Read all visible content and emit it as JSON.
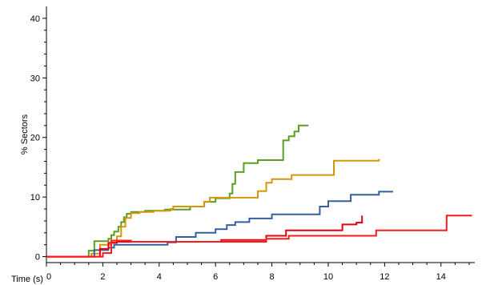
{
  "chart_data": {
    "type": "line",
    "xlabel": "Time (s)",
    "ylabel": "% Sectors",
    "xlim": [
      0,
      15.2
    ],
    "ylim": [
      -1,
      42
    ],
    "xticks": [
      0,
      2,
      4,
      6,
      8,
      10,
      12,
      14
    ],
    "yticks": [
      0,
      10,
      20,
      30,
      40
    ],
    "grid": false,
    "legend": "none",
    "series": [
      {
        "color": "#5aa01e",
        "points": [
          [
            0,
            0
          ],
          [
            1.5,
            0
          ],
          [
            1.5,
            1
          ],
          [
            1.7,
            1
          ],
          [
            1.7,
            2.6
          ],
          [
            2.2,
            2.6
          ],
          [
            2.2,
            3
          ],
          [
            2.3,
            3
          ],
          [
            2.3,
            3.6
          ],
          [
            2.4,
            3.6
          ],
          [
            2.4,
            4.2
          ],
          [
            2.55,
            4.2
          ],
          [
            2.55,
            5
          ],
          [
            2.65,
            5
          ],
          [
            2.65,
            5.8
          ],
          [
            2.75,
            5.8
          ],
          [
            2.75,
            6.6
          ],
          [
            2.85,
            6.6
          ],
          [
            2.85,
            7.2
          ],
          [
            3.0,
            7.2
          ],
          [
            3.0,
            7.5
          ],
          [
            3.5,
            7.5
          ],
          [
            3.5,
            7.7
          ],
          [
            4.2,
            7.7
          ],
          [
            4.2,
            7.9
          ],
          [
            5.1,
            7.9
          ],
          [
            5.1,
            8.4
          ],
          [
            5.6,
            8.4
          ],
          [
            5.6,
            9.2
          ],
          [
            6.0,
            9.2
          ],
          [
            6.0,
            9.8
          ],
          [
            6.5,
            9.8
          ],
          [
            6.5,
            10.6
          ],
          [
            6.6,
            10.6
          ],
          [
            6.6,
            12.2
          ],
          [
            6.7,
            12.2
          ],
          [
            6.7,
            14.2
          ],
          [
            7.0,
            14.2
          ],
          [
            7.0,
            15.7
          ],
          [
            7.5,
            15.7
          ],
          [
            7.5,
            16.2
          ],
          [
            8.4,
            16.2
          ],
          [
            8.4,
            19.5
          ],
          [
            8.6,
            19.5
          ],
          [
            8.6,
            20.2
          ],
          [
            8.8,
            20.2
          ],
          [
            8.8,
            21
          ],
          [
            8.95,
            21
          ],
          [
            8.95,
            22
          ],
          [
            9.3,
            22
          ]
        ]
      },
      {
        "color": "#d4960c",
        "points": [
          [
            0,
            0
          ],
          [
            1.6,
            0
          ],
          [
            1.6,
            0.5
          ],
          [
            1.9,
            0.5
          ],
          [
            1.9,
            2
          ],
          [
            2.3,
            2
          ],
          [
            2.3,
            2.4
          ],
          [
            2.5,
            2.4
          ],
          [
            2.5,
            3.4
          ],
          [
            2.65,
            3.4
          ],
          [
            2.65,
            5
          ],
          [
            2.8,
            5
          ],
          [
            2.8,
            6.5
          ],
          [
            3.0,
            6.5
          ],
          [
            3.0,
            7.3
          ],
          [
            3.3,
            7.3
          ],
          [
            3.3,
            7.5
          ],
          [
            3.8,
            7.5
          ],
          [
            3.8,
            7.7
          ],
          [
            4.4,
            7.7
          ],
          [
            4.4,
            8.0
          ],
          [
            4.5,
            8.0
          ],
          [
            4.5,
            8.4
          ],
          [
            5.6,
            8.4
          ],
          [
            5.6,
            9.2
          ],
          [
            5.8,
            9.2
          ],
          [
            5.8,
            9.9
          ],
          [
            7.5,
            9.9
          ],
          [
            7.5,
            11
          ],
          [
            7.8,
            11
          ],
          [
            7.8,
            12.4
          ],
          [
            8.0,
            12.4
          ],
          [
            8.0,
            13
          ],
          [
            8.7,
            13
          ],
          [
            8.7,
            13.7
          ],
          [
            10.2,
            13.7
          ],
          [
            10.2,
            16.1
          ],
          [
            11.8,
            16.1
          ],
          [
            11.8,
            16.4
          ]
        ]
      },
      {
        "color": "#3560a0",
        "points": [
          [
            0,
            0
          ],
          [
            1.7,
            0
          ],
          [
            1.7,
            1.1
          ],
          [
            2.2,
            1.1
          ],
          [
            2.2,
            1.5
          ],
          [
            2.4,
            1.5
          ],
          [
            2.4,
            2
          ],
          [
            4.3,
            2
          ],
          [
            4.3,
            2.4
          ],
          [
            4.6,
            2.4
          ],
          [
            4.6,
            3.3
          ],
          [
            5.3,
            3.3
          ],
          [
            5.3,
            4
          ],
          [
            6.0,
            4
          ],
          [
            6.0,
            4.6
          ],
          [
            6.4,
            4.6
          ],
          [
            6.4,
            5.3
          ],
          [
            6.7,
            5.3
          ],
          [
            6.7,
            5.8
          ],
          [
            7.2,
            5.8
          ],
          [
            7.2,
            6.4
          ],
          [
            8.0,
            6.4
          ],
          [
            8.0,
            7.1
          ],
          [
            9.7,
            7.1
          ],
          [
            9.7,
            8.4
          ],
          [
            10.0,
            8.4
          ],
          [
            10.0,
            9.3
          ],
          [
            10.8,
            9.3
          ],
          [
            10.8,
            10.4
          ],
          [
            11.8,
            10.4
          ],
          [
            11.8,
            10.9
          ],
          [
            12.3,
            10.9
          ]
        ]
      },
      {
        "color": "#e3000f",
        "points": [
          [
            0,
            0
          ],
          [
            1.9,
            0
          ],
          [
            1.9,
            1.3
          ],
          [
            2.2,
            1.3
          ],
          [
            2.2,
            2.3
          ],
          [
            2.5,
            2.3
          ],
          [
            2.5,
            2.5
          ],
          [
            6.2,
            2.5
          ],
          [
            6.2,
            2.8
          ],
          [
            7.8,
            2.8
          ],
          [
            7.8,
            3.5
          ],
          [
            8.5,
            3.5
          ],
          [
            8.5,
            4.4
          ],
          [
            10.5,
            4.4
          ],
          [
            10.5,
            5.4
          ],
          [
            11.0,
            5.4
          ],
          [
            11.0,
            5.7
          ],
          [
            11.2,
            5.7
          ],
          [
            11.2,
            6.9
          ]
        ]
      },
      {
        "color": "#ff1a1a",
        "points": [
          [
            0,
            0
          ],
          [
            2.0,
            0
          ],
          [
            2.0,
            0.6
          ],
          [
            2.3,
            0.6
          ],
          [
            2.3,
            2.7
          ],
          [
            3.0,
            2.7
          ],
          [
            3.0,
            2.5
          ],
          [
            7.8,
            2.5
          ],
          [
            7.8,
            3.0
          ],
          [
            8.6,
            3.0
          ],
          [
            8.6,
            3.5
          ],
          [
            11.7,
            3.5
          ],
          [
            11.7,
            4.4
          ],
          [
            14.2,
            4.4
          ],
          [
            14.2,
            6.9
          ],
          [
            15.1,
            6.9
          ]
        ]
      }
    ]
  }
}
